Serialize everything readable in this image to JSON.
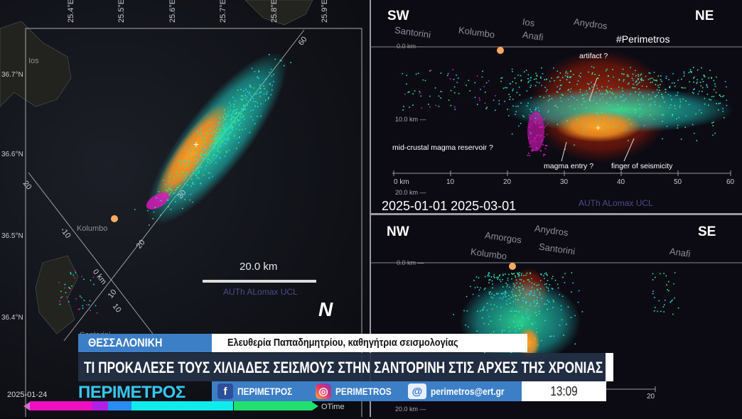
{
  "map": {
    "lon_ticks": [
      "25.4°E",
      "25.5°E",
      "25.6°E",
      "25.7°E",
      "25.8°E",
      "25.9°E"
    ],
    "lat_ticks": [
      "36.7°N",
      "36.6°N",
      "36.5°N",
      "36.4°N"
    ],
    "places": {
      "ios": "Ios",
      "kolumbo": "Kolumbo",
      "santorini": "Santorini"
    },
    "profile_ticks": {
      "a": [
        "20",
        "-10",
        "0 km",
        "10"
      ],
      "b": [
        "60",
        "30",
        "20",
        "10"
      ]
    },
    "scale_label": "20.0 km",
    "credit": "AUTh ALomax UCL",
    "north": "N"
  },
  "sw_ne": {
    "left_dir": "SW",
    "right_dir": "NE",
    "places": [
      "Santorini",
      "Kolumbo",
      "Ios",
      "Anafi",
      "Anydros"
    ],
    "hashtag": "#Perimetros",
    "depths": [
      "0.0 km —",
      "10.0 km —",
      "20.0 km —"
    ],
    "x_ticks": [
      "0 km",
      "10",
      "20",
      "30",
      "40",
      "50",
      "60"
    ],
    "annotations": {
      "artifact": "artifact ?",
      "reservoir": "mid-crustal magma reservoir ?",
      "entry": "magma entry ?",
      "finger": "finger of seismicity"
    },
    "dates": "2025-01-01 2025-03-01",
    "credit": "AUTh ALomax UCL"
  },
  "nw_se": {
    "left_dir": "NW",
    "right_dir": "SE",
    "places": [
      "Amorgos",
      "Kolumbo",
      "Anydros",
      "Santorini",
      "Anafi"
    ],
    "depths": [
      "0.0 km —",
      "20.0 km —"
    ],
    "x_tick": "20"
  },
  "lower_third": {
    "location": "ΘΕΣΣΑΛΟΝΙΚΗ",
    "speaker": "Ελευθερία Παπαδημητρίου, καθηγήτρια σεισμολογίας",
    "headline": "ΤΙ ΠΡΟΚΑΛΕΣΕ ΤΟΥΣ ΧΙΛΙΑΔΕΣ ΣΕΙΣΜΟΥΣ ΣΤΗΝ ΣΑΝΤΟΡΙΝΗ ΣΤΙΣ ΑΡΧΕΣ ΤΗΣ ΧΡΟΝΙΑΣ",
    "logo": "ΠΕΡΙΜΕΤΡΟΣ",
    "facebook": "ΠΕΡΙΜΕΤΡΟΣ",
    "instagram": "PERIMETROS",
    "email": "perimetros@ert.gr",
    "time": "13:09"
  },
  "timeline": {
    "start_date": "2025-01-24",
    "end_label": "OTime",
    "colors": [
      "#ee10c0",
      "#b020e8",
      "#2a8cf0",
      "#10ecec",
      "#20e070"
    ]
  },
  "colors": {
    "accent_blue": "#3d7fc6",
    "headline_bg": "#233046",
    "logo": "#38c6ef",
    "orange": "#ff9a20"
  }
}
